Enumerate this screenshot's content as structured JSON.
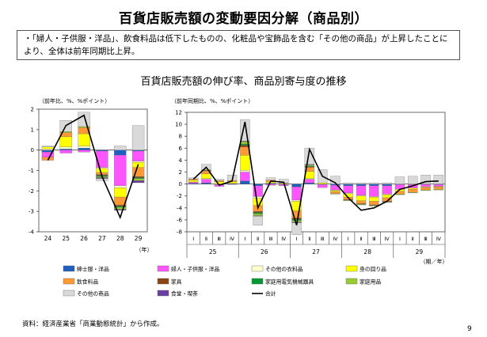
{
  "title": "百貨店販売額の変動要因分解（商品別）",
  "summary": "・「婦人・子供服・洋品」、飲食料品は低下したものの、化粧品や宝飾品を含む「その他の商品」が上昇したことにより、全体は前年同期比上昇。",
  "chart_title": "百貨店販売額の伸び率、商品別寄与度の推移",
  "footnote": "資料：経済産業省「商業動態統計」から作成。",
  "page_number": "9",
  "colors": {
    "mens": "#1f5fbf",
    "womens": "#ff55ff",
    "other_clothing": "#ffffcc",
    "personal": "#ffff00",
    "food": "#ff9933",
    "furniture": "#8b4513",
    "appliances": "#009933",
    "household": "#99cc33",
    "dining": "#6a3fa0",
    "other_goods": "#d9d9d9",
    "total": "#000000"
  },
  "legend": [
    {
      "key": "mens",
      "label": "紳士服・洋品",
      "kind": "bar"
    },
    {
      "key": "womens",
      "label": "婦人・子供服・洋品",
      "kind": "bar"
    },
    {
      "key": "other_clothing",
      "label": "その他の衣料品",
      "kind": "bar"
    },
    {
      "key": "personal",
      "label": "身の回り品",
      "kind": "bar"
    },
    {
      "key": "food",
      "label": "飲食料品",
      "kind": "bar"
    },
    {
      "key": "furniture",
      "label": "家具",
      "kind": "bar"
    },
    {
      "key": "appliances",
      "label": "家庭用電気機械器具",
      "kind": "bar"
    },
    {
      "key": "household",
      "label": "家庭用品",
      "kind": "bar"
    },
    {
      "key": "other_goods",
      "label": "その他の商品",
      "kind": "bar"
    },
    {
      "key": "dining",
      "label": "食堂・喫茶",
      "kind": "bar"
    },
    {
      "key": "total",
      "label": "合計",
      "kind": "line"
    }
  ],
  "chart_data": [
    {
      "type": "bar",
      "stacked": true,
      "axis_note": "（前年比、%、%ポイント）",
      "x_unit": "（年）",
      "categories": [
        "24",
        "25",
        "26",
        "27",
        "28",
        "29"
      ],
      "ylim": [
        -4,
        2
      ],
      "yticks": [
        -4,
        -3,
        -2,
        -1,
        0,
        1,
        2
      ],
      "series": [
        {
          "key": "mens",
          "values": [
            -0.1,
            0.05,
            0.1,
            -0.05,
            -0.25,
            -0.05
          ]
        },
        {
          "key": "womens",
          "values": [
            -0.25,
            -0.15,
            -0.1,
            -0.8,
            -1.5,
            -0.5
          ]
        },
        {
          "key": "other_clothing",
          "values": [
            0.05,
            0.1,
            0.1,
            -0.05,
            -0.1,
            -0.05
          ]
        },
        {
          "key": "personal",
          "values": [
            0.1,
            0.5,
            0.6,
            -0.2,
            -0.45,
            -0.25
          ]
        },
        {
          "key": "food",
          "values": [
            -0.15,
            0.2,
            0.3,
            -0.1,
            -0.4,
            -0.45
          ]
        },
        {
          "key": "furniture",
          "values": [
            0,
            0,
            0,
            -0.05,
            -0.05,
            -0.05
          ]
        },
        {
          "key": "appliances",
          "values": [
            0,
            0,
            0,
            -0.05,
            -0.05,
            -0.05
          ]
        },
        {
          "key": "household",
          "values": [
            0,
            0.05,
            0.05,
            -0.05,
            -0.1,
            -0.1
          ]
        },
        {
          "key": "dining",
          "values": [
            0,
            0,
            0,
            -0.05,
            -0.05,
            -0.1
          ]
        },
        {
          "key": "other_goods",
          "values": [
            0.05,
            0.55,
            0.7,
            -0.1,
            0.2,
            1.2
          ]
        }
      ],
      "total": [
        -0.5,
        1.2,
        1.7,
        -1.3,
        -3.3,
        -0.7
      ]
    },
    {
      "type": "bar",
      "stacked": true,
      "axis_note": "（前年同期比、%、%ポイント）",
      "x_unit": "（期／年）",
      "quarters": [
        "Ⅰ",
        "Ⅱ",
        "Ⅲ",
        "Ⅳ"
      ],
      "years": [
        "25",
        "26",
        "27",
        "28",
        "29"
      ],
      "ylim": [
        -8,
        12
      ],
      "yticks": [
        -8,
        -6,
        -4,
        -2,
        0,
        2,
        4,
        6,
        8,
        10,
        12
      ],
      "series": [
        {
          "key": "mens",
          "values": [
            0.1,
            0.2,
            -0.1,
            0.1,
            0.5,
            -0.3,
            0.1,
            -0.1,
            -0.5,
            0.2,
            -0.1,
            -0.2,
            -0.3,
            -0.3,
            -0.3,
            -0.3,
            -0.1,
            -0.1,
            -0.1,
            -0.1
          ]
        },
        {
          "key": "womens",
          "values": [
            0.2,
            0.6,
            -0.3,
            -0.1,
            1.5,
            -1.8,
            -0.2,
            -0.2,
            -2.2,
            0.6,
            -0.5,
            -0.8,
            -1.2,
            -1.6,
            -1.8,
            -1.4,
            -0.8,
            -0.6,
            -0.4,
            -0.3
          ]
        },
        {
          "key": "other_clothing",
          "values": [
            0.05,
            0.1,
            0,
            0,
            0.3,
            -0.3,
            0.05,
            0,
            -0.2,
            0.1,
            0,
            -0.1,
            -0.1,
            -0.1,
            -0.1,
            -0.1,
            0,
            0,
            0,
            0
          ]
        },
        {
          "key": "personal",
          "values": [
            0.3,
            0.8,
            0.4,
            0.3,
            2.5,
            -1.2,
            0.2,
            0.1,
            -1.6,
            1.2,
            0.2,
            -0.2,
            -0.6,
            -0.8,
            -0.7,
            -0.5,
            -0.3,
            -0.2,
            -0.1,
            -0.1
          ]
        },
        {
          "key": "food",
          "values": [
            0.2,
            0.5,
            0.2,
            0.2,
            1.4,
            -1.0,
            0.3,
            0.1,
            -1.2,
            0.7,
            0,
            -0.3,
            -0.4,
            -0.5,
            -0.6,
            -0.6,
            -0.5,
            -0.5,
            -0.4,
            -0.4
          ]
        },
        {
          "key": "furniture",
          "values": [
            0,
            0.1,
            0,
            0,
            0.3,
            -0.2,
            0,
            0,
            -0.2,
            0.1,
            0,
            0,
            -0.1,
            -0.1,
            -0.1,
            -0.1,
            0,
            0,
            0,
            0
          ]
        },
        {
          "key": "appliances",
          "values": [
            0,
            0,
            0,
            0,
            0.2,
            -0.2,
            0,
            0,
            -0.2,
            0.1,
            0,
            0,
            0,
            0,
            0,
            0,
            0,
            0,
            0,
            0
          ]
        },
        {
          "key": "household",
          "values": [
            0,
            0.1,
            0,
            0,
            0.4,
            -0.3,
            0,
            0,
            -0.3,
            0.2,
            0,
            -0.1,
            -0.1,
            -0.1,
            -0.1,
            -0.1,
            -0.1,
            -0.1,
            -0.1,
            -0.1
          ]
        },
        {
          "key": "dining",
          "values": [
            0,
            0,
            0,
            0,
            0.1,
            -0.1,
            0,
            0,
            -0.1,
            0.1,
            0,
            0,
            0,
            0,
            0,
            0,
            0,
            0,
            0,
            0
          ]
        },
        {
          "key": "other_goods",
          "values": [
            0.2,
            0.9,
            0.2,
            0.9,
            3.6,
            -1.5,
            0.4,
            0.6,
            -2.0,
            2.7,
            2.2,
            1.3,
            0.2,
            0.2,
            0.2,
            0.2,
            1.2,
            1.3,
            1.5,
            1.5
          ]
        }
      ],
      "total": [
        0.8,
        2.8,
        -0.2,
        0.5,
        10.4,
        -4.0,
        0.5,
        0.3,
        -6.9,
        5.8,
        1.3,
        0.2,
        -2.3,
        -4.4,
        -4.0,
        -2.9,
        -0.9,
        -0.3,
        0.4,
        0.5
      ]
    }
  ]
}
